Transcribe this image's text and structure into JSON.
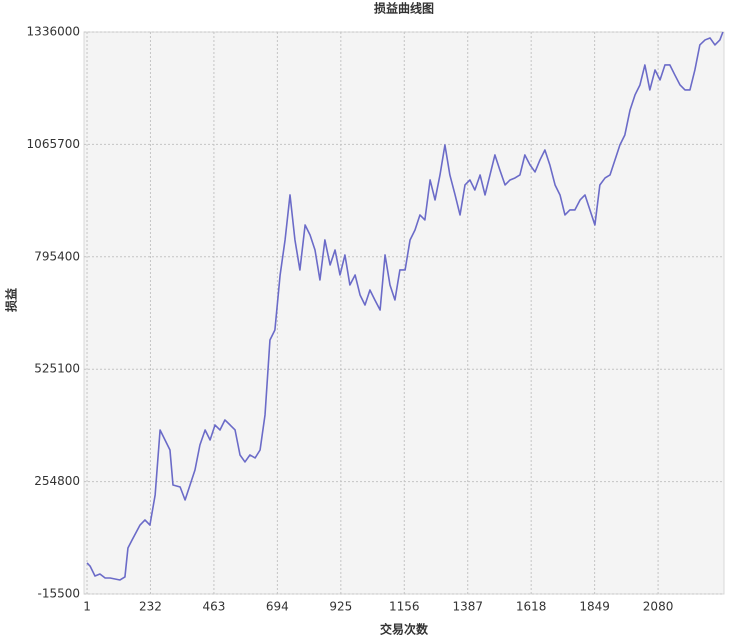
{
  "chart_data": {
    "type": "line",
    "title": "损益曲线图",
    "xlabel": "交易次数",
    "ylabel": "损益",
    "xlim": [
      -10,
      2320
    ],
    "ylim": [
      -15500,
      1336000
    ],
    "xticks": [
      1,
      232,
      463,
      694,
      925,
      1156,
      1387,
      1618,
      1849,
      2080
    ],
    "yticks": [
      -15500,
      254800,
      525100,
      795400,
      1065700,
      1336000
    ],
    "grid": true,
    "series": [
      {
        "name": "损益",
        "color": "#6b6bc8",
        "x": [
          1,
          12,
          30,
          48,
          67,
          85,
          121,
          139,
          150,
          165,
          194,
          212,
          230,
          249,
          267,
          285,
          303,
          314,
          340,
          358,
          376,
          394,
          412,
          431,
          449,
          467,
          485,
          503,
          522,
          540,
          558,
          576,
          594,
          613,
          631,
          649,
          667,
          685,
          704,
          722,
          740,
          758,
          776,
          795,
          813,
          831,
          849,
          867,
          886,
          904,
          922,
          940,
          958,
          977,
          995,
          1013,
          1031,
          1049,
          1068,
          1086,
          1104,
          1122,
          1140,
          1159,
          1177,
          1195,
          1213,
          1231,
          1250,
          1268,
          1286,
          1304,
          1322,
          1341,
          1359,
          1377,
          1395,
          1413,
          1432,
          1450,
          1468,
          1486,
          1504,
          1523,
          1541,
          1559,
          1577,
          1595,
          1614,
          1632,
          1650,
          1668,
          1686,
          1705,
          1723,
          1741,
          1759,
          1777,
          1796,
          1814,
          1832,
          1850,
          1868,
          1887,
          1905,
          1923,
          1941,
          1959,
          1978,
          1996,
          2014,
          2032,
          2050,
          2069,
          2087,
          2105,
          2123,
          2141,
          2160,
          2178,
          2196,
          2214,
          2232,
          2251,
          2269,
          2287,
          2305,
          2316
        ],
        "values": [
          59100,
          51800,
          27800,
          32600,
          23000,
          23000,
          18200,
          25400,
          95100,
          114400,
          150400,
          162500,
          150400,
          222600,
          378900,
          354900,
          330800,
          246600,
          241800,
          210600,
          246600,
          282700,
          342800,
          378900,
          354900,
          390900,
          378900,
          403000,
          390900,
          378900,
          318800,
          302000,
          318800,
          311600,
          330800,
          415000,
          595400,
          619400,
          751700,
          835900,
          944100,
          835900,
          763700,
          871900,
          847900,
          811800,
          739700,
          835900,
          775700,
          811800,
          751700,
          799800,
          727600,
          751700,
          703600,
          679500,
          715600,
          691600,
          667500,
          799800,
          727600,
          691600,
          763700,
          763700,
          835900,
          859900,
          896000,
          884000,
          980200,
          932100,
          992200,
          1064300,
          992200,
          944100,
          896000,
          968100,
          980200,
          956100,
          992200,
          944100,
          992200,
          1040300,
          1004200,
          968100,
          980200,
          985000,
          992200,
          1040300,
          1016200,
          999400,
          1028300,
          1052300,
          1016200,
          968100,
          944100,
          896000,
          908000,
          908000,
          932100,
          944100,
          908000,
          871900,
          968100,
          985000,
          992200,
          1028300,
          1064300,
          1088400,
          1148500,
          1184600,
          1208600,
          1256700,
          1196600,
          1244700,
          1220700,
          1256700,
          1256700,
          1232700,
          1208600,
          1196600,
          1196600,
          1244700,
          1304800,
          1316900,
          1321700,
          1304800,
          1316900,
          1336000
        ]
      }
    ]
  }
}
